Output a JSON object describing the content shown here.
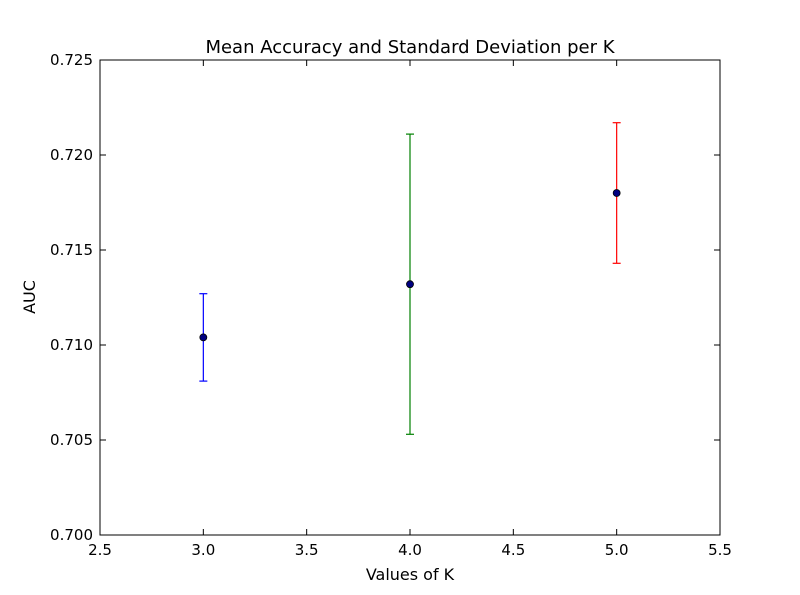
{
  "chart_data": {
    "type": "scatter",
    "title": "Mean Accuracy and Standard Deviation per K",
    "xlabel": "Values of K",
    "ylabel": "AUC",
    "xlim": [
      2.5,
      5.5
    ],
    "ylim": [
      0.7,
      0.725
    ],
    "x_ticks": [
      "2.5",
      "3.0",
      "3.5",
      "4.0",
      "4.5",
      "5.0",
      "5.5"
    ],
    "y_ticks": [
      "0.700",
      "0.705",
      "0.710",
      "0.715",
      "0.720",
      "0.725"
    ],
    "grid": false,
    "legend": "none",
    "marker_color": "#000080",
    "points": [
      {
        "x": 3,
        "y": 0.7104,
        "std": 0.0023,
        "errorbar_color": "#0000ff"
      },
      {
        "x": 4,
        "y": 0.7132,
        "std": 0.0079,
        "errorbar_color": "#008000"
      },
      {
        "x": 5,
        "y": 0.718,
        "std": 0.0037,
        "errorbar_color": "#ff0000"
      }
    ]
  }
}
